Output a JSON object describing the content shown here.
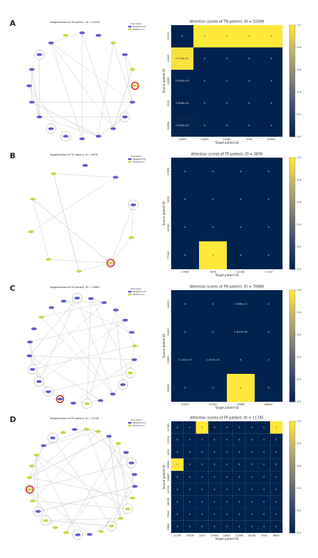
{
  "panels": [
    "A",
    "B",
    "C",
    "D"
  ],
  "networks": [
    {
      "title": "Neighborhood of TN patient, ID = 10399",
      "legend_title": "True label",
      "legend": [
        {
          "name": "Negative (0)",
          "color": "#5a5fc8"
        },
        {
          "name": "Positive (1)",
          "color": "#cfd24a"
        }
      ]
    },
    {
      "title": "Neighborhood of TP patient, ID = 3876",
      "legend_title": "True label",
      "legend": [
        {
          "name": "Negative (0)",
          "color": "#5a5fc8"
        },
        {
          "name": "Positive (1)",
          "color": "#cfd24a"
        }
      ]
    },
    {
      "title": "Neighborhood of FN patient, ID = 70989",
      "legend_title": "True label",
      "legend": [
        {
          "name": "Negative (0)",
          "color": "#5a5fc8"
        },
        {
          "name": "Positive (1)",
          "color": "#cfd24a"
        }
      ]
    },
    {
      "title": "Neighborhood of FP patient, ID = 11745",
      "legend_title": "True label",
      "legend": [
        {
          "name": "Negative (0)",
          "color": "#5a5fc8"
        },
        {
          "name": "Positive (1)",
          "color": "#cfd24a"
        }
      ]
    }
  ],
  "chart_data": [
    {
      "type": "heatmap",
      "title": "Attention scores of TN patient, ID = 10399",
      "x_label": "Target patient ID",
      "y_label": "Source patient ID",
      "x": [
        "10399",
        "11825",
        "15285",
        "3133",
        "64994"
      ],
      "y": [
        "10399",
        "11825",
        "15285",
        "3133",
        "64994"
      ],
      "values": [
        [
          0,
          1,
          1,
          1,
          1
        ],
        [
          0.9704,
          0,
          0,
          0,
          0
        ],
        [
          0.008092,
          0,
          0,
          0,
          0
        ],
        [
          0.0004946,
          0,
          0,
          0,
          0
        ],
        [
          0.01992,
          0,
          0,
          0,
          0
        ]
      ],
      "value_labels": [
        [
          "0",
          "1",
          "1",
          "1",
          "1"
        ],
        [
          "9.704e-01",
          "0",
          "0",
          "0",
          "0"
        ],
        [
          "8.092e-03",
          "0",
          "0",
          "0",
          "0"
        ],
        [
          "4.946e-04",
          "0",
          "0",
          "0",
          "0"
        ],
        [
          "1.992e-02",
          "0",
          "0",
          "0",
          "0"
        ]
      ],
      "colormap": [
        "#00224e",
        "#3b496c",
        "#7c7b78",
        "#bcaf6f",
        "#fee838"
      ],
      "clim": [
        0,
        1
      ],
      "cticks": [
        {
          "value": 0,
          "label": "0.0"
        },
        0.2,
        0.4,
        0.6,
        0.8,
        {
          "value": 1,
          "label": "1.0"
        }
      ]
    },
    {
      "type": "heatmap",
      "title": "Attention scores of TP patient, ID = 3876",
      "x_label": "Target patient ID",
      "y_label": "Source patient ID",
      "x": [
        "17965",
        "3876",
        "42180",
        "77149"
      ],
      "y": [
        "17965",
        "3876",
        "42180",
        "77149"
      ],
      "values": [
        [
          0,
          0,
          0,
          0
        ],
        [
          0,
          0,
          0,
          0
        ],
        [
          0,
          0,
          0,
          0
        ],
        [
          0,
          1,
          0,
          0
        ]
      ],
      "colormap": [
        "#00224e",
        "#3b496c",
        "#7c7b78",
        "#bcaf6f",
        "#fee838"
      ],
      "clim": [
        0,
        1
      ],
      "cticks": [
        {
          "value": 0,
          "label": "0.0"
        },
        0.2,
        0.4,
        0.6,
        0.8,
        {
          "value": 1,
          "label": "1.0"
        }
      ]
    },
    {
      "type": "heatmap",
      "title": "Attention scores of FN patient, ID = 70989",
      "x_label": "Target patient ID",
      "y_label": "Source patient ID",
      "x": [
        "42433",
        "52420",
        "70989",
        "88432"
      ],
      "y": [
        "42433",
        "52420",
        "70989",
        "88432"
      ],
      "values": [
        [
          0,
          0,
          2.369e-11,
          0
        ],
        [
          0,
          0,
          1.607e-09,
          0
        ],
        [
          3.141e-17,
          1.52e-14,
          0,
          0
        ],
        [
          0,
          0,
          1,
          0
        ]
      ],
      "value_labels": [
        [
          "0",
          "0",
          "2.369e-11",
          "0"
        ],
        [
          "0",
          "0",
          "1.607e-09",
          "0"
        ],
        [
          "3.141e-17",
          "1.520e-14",
          "0",
          "0"
        ],
        [
          "0",
          "0",
          "1",
          "0"
        ]
      ],
      "colormap": [
        "#00224e",
        "#3b496c",
        "#7c7b78",
        "#bcaf6f",
        "#fee838"
      ],
      "clim": [
        0,
        1
      ],
      "cticks": [
        {
          "value": 0,
          "label": "0.0"
        },
        0.2,
        0.4,
        0.6,
        0.8,
        {
          "value": 1,
          "label": "1.0"
        }
      ]
    },
    {
      "type": "heatmap",
      "title": "Attention scores of FP patient, ID = 11745",
      "x_label": "Target patient ID",
      "y_label": "Source patient ID",
      "x": [
        "11745",
        "13316",
        "1419",
        "14954",
        "18447",
        "22336",
        "24238",
        "7554",
        "8654"
      ],
      "y": [
        "11745",
        "13316",
        "1419",
        "14954",
        "18447",
        "22336",
        "24238",
        "7554",
        "8654"
      ],
      "values": [
        [
          0,
          0,
          1,
          0,
          0,
          0,
          0,
          0,
          1
        ],
        [
          0,
          0,
          0,
          0,
          0,
          0,
          0,
          0,
          0
        ],
        [
          0,
          0,
          0,
          0,
          0,
          0,
          0,
          0,
          0
        ],
        [
          1,
          0,
          0,
          0,
          0,
          0,
          0,
          0,
          0
        ],
        [
          0,
          0,
          0,
          0,
          0,
          0,
          0,
          0,
          0
        ],
        [
          0,
          0,
          0,
          0,
          0,
          0,
          0,
          0,
          0
        ],
        [
          0,
          0,
          0,
          0,
          0,
          0,
          0,
          0,
          0
        ],
        [
          0,
          0,
          0,
          0,
          0,
          0,
          0,
          0,
          0
        ],
        [
          0,
          0,
          0,
          0,
          0,
          0,
          0,
          0,
          0
        ]
      ],
      "colormap": [
        "#00224e",
        "#3b496c",
        "#7c7b78",
        "#bcaf6f",
        "#fee838"
      ],
      "clim": [
        0,
        1
      ],
      "cticks": [
        {
          "value": 0,
          "label": "0.0"
        },
        0.2,
        0.4,
        0.6,
        0.8,
        {
          "value": 1,
          "label": "1.0"
        }
      ]
    }
  ]
}
